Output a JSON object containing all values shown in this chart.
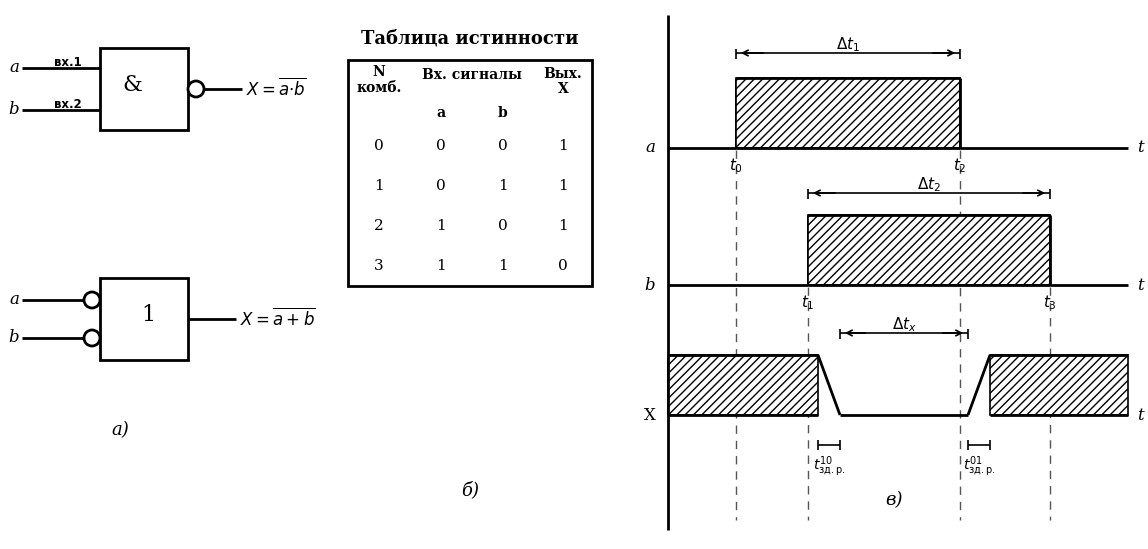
{
  "title_table": "Таблица истинности",
  "table_data": [
    [
      0,
      0,
      0,
      1
    ],
    [
      1,
      0,
      1,
      1
    ],
    [
      2,
      1,
      0,
      1
    ],
    [
      3,
      1,
      1,
      0
    ]
  ],
  "bg_color": "#ffffff",
  "line_color": "#000000"
}
